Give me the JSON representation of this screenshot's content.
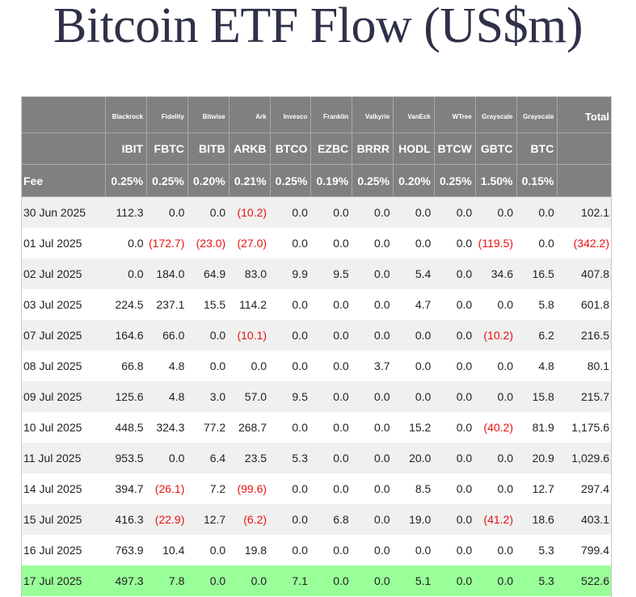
{
  "title": "Bitcoin ETF Flow (US$m)",
  "chart_data": {
    "type": "table",
    "title": "Bitcoin ETF Flow (US$m)",
    "issuers": [
      "Blackrock",
      "Fidelity",
      "Bitwise",
      "Ark",
      "Invesco",
      "Franklin",
      "Valkyrie",
      "VanEck",
      "WTree",
      "Grayscale",
      "Grayscale"
    ],
    "total_label": "Total",
    "tickers": [
      "IBIT",
      "FBTC",
      "BITB",
      "ARKB",
      "BTCO",
      "EZBC",
      "BRRR",
      "HODL",
      "BTCW",
      "GBTC",
      "BTC"
    ],
    "fee_label": "Fee",
    "fees": [
      "0.25%",
      "0.25%",
      "0.20%",
      "0.21%",
      "0.25%",
      "0.19%",
      "0.25%",
      "0.20%",
      "0.25%",
      "1.50%",
      "0.15%"
    ],
    "rows": [
      {
        "date": "30 Jun 2025",
        "values": [
          "112.3",
          "0.0",
          "0.0",
          "(10.2)",
          "0.0",
          "0.0",
          "0.0",
          "0.0",
          "0.0",
          "0.0",
          "0.0"
        ],
        "total": "102.1"
      },
      {
        "date": "01 Jul 2025",
        "values": [
          "0.0",
          "(172.7)",
          "(23.0)",
          "(27.0)",
          "0.0",
          "0.0",
          "0.0",
          "0.0",
          "0.0",
          "(119.5)",
          "0.0"
        ],
        "total": "(342.2)"
      },
      {
        "date": "02 Jul 2025",
        "values": [
          "0.0",
          "184.0",
          "64.9",
          "83.0",
          "9.9",
          "9.5",
          "0.0",
          "5.4",
          "0.0",
          "34.6",
          "16.5"
        ],
        "total": "407.8"
      },
      {
        "date": "03 Jul 2025",
        "values": [
          "224.5",
          "237.1",
          "15.5",
          "114.2",
          "0.0",
          "0.0",
          "0.0",
          "4.7",
          "0.0",
          "0.0",
          "5.8"
        ],
        "total": "601.8"
      },
      {
        "date": "07 Jul 2025",
        "values": [
          "164.6",
          "66.0",
          "0.0",
          "(10.1)",
          "0.0",
          "0.0",
          "0.0",
          "0.0",
          "0.0",
          "(10.2)",
          "6.2"
        ],
        "total": "216.5"
      },
      {
        "date": "08 Jul 2025",
        "values": [
          "66.8",
          "4.8",
          "0.0",
          "0.0",
          "0.0",
          "0.0",
          "3.7",
          "0.0",
          "0.0",
          "0.0",
          "4.8"
        ],
        "total": "80.1"
      },
      {
        "date": "09 Jul 2025",
        "values": [
          "125.6",
          "4.8",
          "3.0",
          "57.0",
          "9.5",
          "0.0",
          "0.0",
          "0.0",
          "0.0",
          "0.0",
          "15.8"
        ],
        "total": "215.7"
      },
      {
        "date": "10 Jul 2025",
        "values": [
          "448.5",
          "324.3",
          "77.2",
          "268.7",
          "0.0",
          "0.0",
          "0.0",
          "15.2",
          "0.0",
          "(40.2)",
          "81.9"
        ],
        "total": "1,175.6"
      },
      {
        "date": "11 Jul 2025",
        "values": [
          "953.5",
          "0.0",
          "6.4",
          "23.5",
          "5.3",
          "0.0",
          "0.0",
          "20.0",
          "0.0",
          "0.0",
          "20.9"
        ],
        "total": "1,029.6"
      },
      {
        "date": "14 Jul 2025",
        "values": [
          "394.7",
          "(26.1)",
          "7.2",
          "(99.6)",
          "0.0",
          "0.0",
          "0.0",
          "8.5",
          "0.0",
          "0.0",
          "12.7"
        ],
        "total": "297.4"
      },
      {
        "date": "15 Jul 2025",
        "values": [
          "416.3",
          "(22.9)",
          "12.7",
          "(6.2)",
          "0.0",
          "6.8",
          "0.0",
          "19.0",
          "0.0",
          "(41.2)",
          "18.6"
        ],
        "total": "403.1"
      },
      {
        "date": "16 Jul 2025",
        "values": [
          "763.9",
          "10.4",
          "0.0",
          "19.8",
          "0.0",
          "0.0",
          "0.0",
          "0.0",
          "0.0",
          "0.0",
          "5.3"
        ],
        "total": "799.4"
      },
      {
        "date": "17 Jul 2025",
        "values": [
          "497.3",
          "7.8",
          "0.0",
          "0.0",
          "7.1",
          "0.0",
          "0.0",
          "5.1",
          "0.0",
          "0.0",
          "5.3"
        ],
        "total": "522.6",
        "highlighted": true
      }
    ],
    "colors": {
      "header_bg": "#808080",
      "highlight_row": "#99ff99",
      "negative_text": "#e8110f",
      "title_text": "#2e3148"
    }
  }
}
